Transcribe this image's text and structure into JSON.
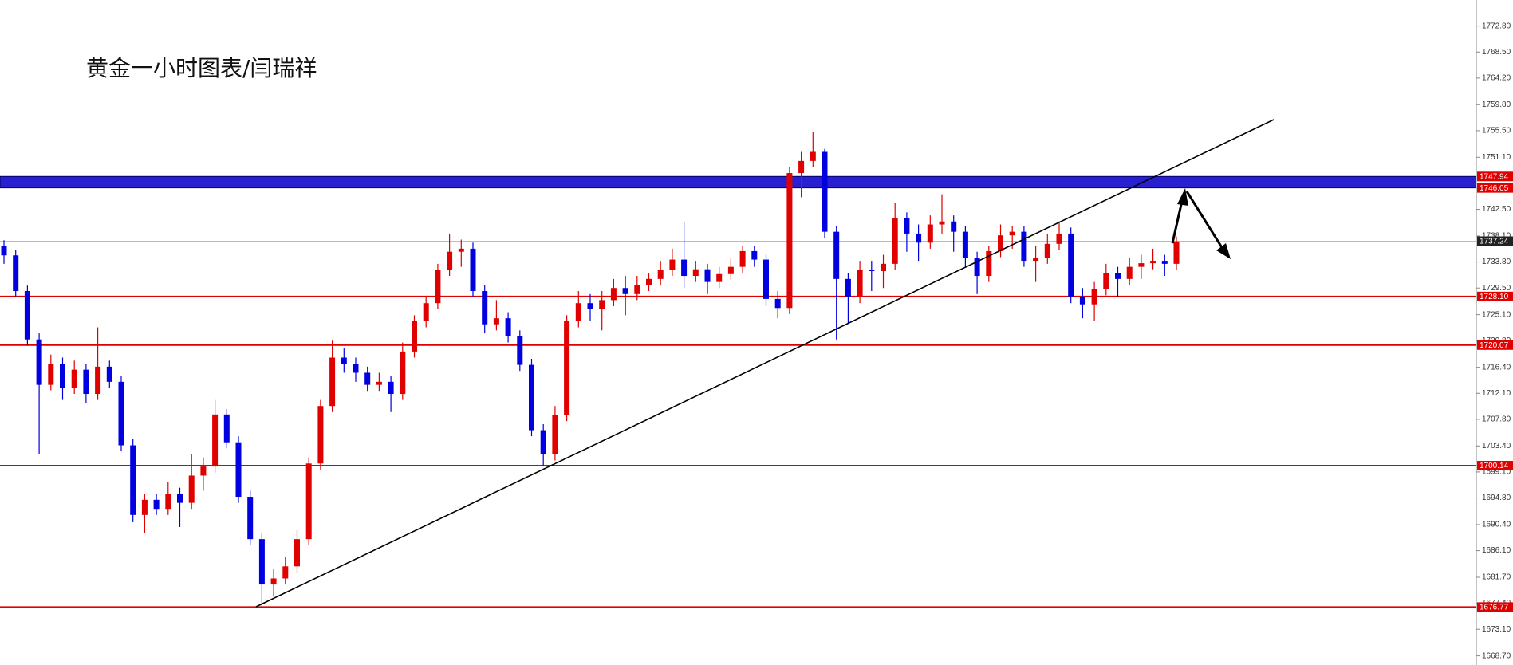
{
  "chart_data": {
    "type": "candlestick",
    "title": "黄金一小时图表/闫瑞祥",
    "up_color": "#e00000",
    "down_color": "#0000e0",
    "ylim": [
      1667.2,
      1777.1
    ],
    "yticks": [
      {
        "value": 1772.8,
        "label": "1772.80"
      },
      {
        "value": 1768.5,
        "label": "1768.50"
      },
      {
        "value": 1764.2,
        "label": "1764.20"
      },
      {
        "value": 1759.8,
        "label": "1759.80"
      },
      {
        "value": 1755.5,
        "label": "1755.50"
      },
      {
        "value": 1751.1,
        "label": "1751.10"
      },
      {
        "value": 1742.5,
        "label": "1742.50"
      },
      {
        "value": 1738.1,
        "label": "1738.10"
      },
      {
        "value": 1733.8,
        "label": "1733.80"
      },
      {
        "value": 1729.5,
        "label": "1729.50"
      },
      {
        "value": 1725.1,
        "label": "1725.10"
      },
      {
        "value": 1720.8,
        "label": "1720.80"
      },
      {
        "value": 1716.4,
        "label": "1716.40"
      },
      {
        "value": 1712.1,
        "label": "1712.10"
      },
      {
        "value": 1707.8,
        "label": "1707.80"
      },
      {
        "value": 1703.4,
        "label": "1703.40"
      },
      {
        "value": 1699.1,
        "label": "1699.10"
      },
      {
        "value": 1694.8,
        "label": "1694.80"
      },
      {
        "value": 1690.4,
        "label": "1690.40"
      },
      {
        "value": 1686.1,
        "label": "1686.10"
      },
      {
        "value": 1681.7,
        "label": "1681.70"
      },
      {
        "value": 1677.4,
        "label": "1677.40"
      },
      {
        "value": 1673.1,
        "label": "1673.10"
      },
      {
        "value": 1668.7,
        "label": "1668.70"
      }
    ],
    "levels": [
      {
        "value": 1728.1,
        "label": "1728.10"
      },
      {
        "value": 1720.07,
        "label": "1720.07"
      },
      {
        "value": 1700.14,
        "label": "1700.14"
      },
      {
        "value": 1676.77,
        "label": "1676.77"
      }
    ],
    "level_color": "#e00000",
    "band": {
      "color": "#2a1fd0",
      "label_color": "#e00000",
      "values": [
        {
          "value": 1746.05,
          "label": "1746.05"
        },
        {
          "value": 1747.94,
          "label": "1747.94"
        }
      ]
    },
    "last_price": {
      "value": 1737.24,
      "label": "1737.24",
      "color": "#bbbbbb",
      "label_color": "#222222"
    },
    "ohlc": [
      [
        1736.5,
        1737.4,
        1733.5,
        1734.9
      ],
      [
        1734.9,
        1735.8,
        1728,
        1729
      ],
      [
        1729,
        1729.9,
        1720,
        1721
      ],
      [
        1721,
        1722,
        1702,
        1713.5
      ],
      [
        1713.5,
        1718.5,
        1712.6,
        1717
      ],
      [
        1717,
        1718,
        1711,
        1713
      ],
      [
        1713,
        1717.5,
        1712,
        1716
      ],
      [
        1716,
        1717,
        1710.5,
        1712
      ],
      [
        1712,
        1723,
        1711,
        1716.5
      ],
      [
        1716.5,
        1717.5,
        1713,
        1714
      ],
      [
        1714,
        1715,
        1702.5,
        1703.5
      ],
      [
        1703.5,
        1704.5,
        1690.8,
        1692
      ],
      [
        1692,
        1695.5,
        1689,
        1694.5
      ],
      [
        1694.5,
        1695.5,
        1692,
        1693
      ],
      [
        1693,
        1697.5,
        1692,
        1695.5
      ],
      [
        1695.5,
        1696.5,
        1690,
        1694
      ],
      [
        1694,
        1702,
        1693,
        1698.5
      ],
      [
        1698.5,
        1701.5,
        1696,
        1700
      ],
      [
        1700,
        1711,
        1699,
        1708.6
      ],
      [
        1708.6,
        1709.5,
        1703,
        1704
      ],
      [
        1704,
        1705,
        1694,
        1695
      ],
      [
        1695,
        1696,
        1687,
        1688
      ],
      [
        1688,
        1689,
        1676.8,
        1680.5
      ],
      [
        1680.5,
        1683,
        1678.5,
        1681.5
      ],
      [
        1681.5,
        1685,
        1680.5,
        1683.5
      ],
      [
        1683.5,
        1689.5,
        1682.5,
        1688
      ],
      [
        1688,
        1701.5,
        1687,
        1700.5
      ],
      [
        1700.5,
        1711,
        1699.5,
        1710
      ],
      [
        1710,
        1720.8,
        1709,
        1718
      ],
      [
        1718,
        1719.5,
        1715.5,
        1717
      ],
      [
        1717,
        1718,
        1714,
        1715.5
      ],
      [
        1715.5,
        1716.5,
        1712.5,
        1713.5
      ],
      [
        1713.5,
        1715.5,
        1712.5,
        1714
      ],
      [
        1714,
        1715,
        1709,
        1712
      ],
      [
        1712,
        1720.5,
        1711,
        1719
      ],
      [
        1719,
        1725,
        1718,
        1724
      ],
      [
        1724,
        1728,
        1723,
        1727
      ],
      [
        1727,
        1733.5,
        1726,
        1732.5
      ],
      [
        1732.5,
        1738.5,
        1731.5,
        1735.5
      ],
      [
        1735.5,
        1737.5,
        1733,
        1736
      ],
      [
        1736,
        1737,
        1728,
        1729
      ],
      [
        1729,
        1730,
        1722,
        1723.5
      ],
      [
        1723.5,
        1727.5,
        1722.5,
        1724.5
      ],
      [
        1724.5,
        1725.5,
        1720.5,
        1721.5
      ],
      [
        1721.5,
        1722.5,
        1715.8,
        1716.8
      ],
      [
        1716.8,
        1717.8,
        1705,
        1706
      ],
      [
        1706,
        1707,
        1700.1,
        1702
      ],
      [
        1702,
        1710,
        1701,
        1708.5
      ],
      [
        1708.5,
        1725,
        1707.5,
        1724
      ],
      [
        1724,
        1729,
        1723,
        1727
      ],
      [
        1727,
        1728.5,
        1724,
        1726
      ],
      [
        1726,
        1729,
        1722.5,
        1727.5
      ],
      [
        1727.5,
        1731,
        1726.5,
        1729.5
      ],
      [
        1729.5,
        1731.5,
        1725,
        1728.5
      ],
      [
        1728.5,
        1731.5,
        1727.5,
        1730
      ],
      [
        1730,
        1732,
        1729,
        1731
      ],
      [
        1731,
        1734,
        1730,
        1732.5
      ],
      [
        1732.5,
        1736,
        1731.5,
        1734.2
      ],
      [
        1734.2,
        1740.5,
        1729.5,
        1731.5
      ],
      [
        1731.5,
        1734,
        1730.5,
        1732.6
      ],
      [
        1732.6,
        1733.5,
        1728.5,
        1730.5
      ],
      [
        1730.5,
        1733,
        1729.5,
        1731.8
      ],
      [
        1731.8,
        1734.5,
        1730.8,
        1733
      ],
      [
        1733,
        1736.5,
        1732,
        1735.6
      ],
      [
        1735.6,
        1736.5,
        1733,
        1734.2
      ],
      [
        1734.2,
        1735,
        1726.5,
        1727.7
      ],
      [
        1727.7,
        1729,
        1724.5,
        1726.2
      ],
      [
        1726.2,
        1749.5,
        1725.2,
        1748.5
      ],
      [
        1748.5,
        1752,
        1744.5,
        1750.5
      ],
      [
        1750.5,
        1755.3,
        1749.5,
        1752
      ],
      [
        1752,
        1752.5,
        1737.8,
        1738.8
      ],
      [
        1738.8,
        1739.8,
        1721,
        1731
      ],
      [
        1731,
        1732,
        1723.7,
        1728
      ],
      [
        1728,
        1734,
        1727,
        1732.5
      ],
      [
        1732.5,
        1734,
        1729,
        1732.3
      ],
      [
        1732.3,
        1735,
        1729.5,
        1733.5
      ],
      [
        1733.5,
        1743.5,
        1732.5,
        1741
      ],
      [
        1741,
        1742,
        1735.5,
        1738.5
      ],
      [
        1738.5,
        1740,
        1734,
        1737
      ],
      [
        1737,
        1741.5,
        1736,
        1740
      ],
      [
        1740,
        1745,
        1738.5,
        1740.5
      ],
      [
        1740.5,
        1741.5,
        1735.5,
        1738.8
      ],
      [
        1738.8,
        1739.8,
        1733,
        1734.5
      ],
      [
        1734.5,
        1735.5,
        1728.5,
        1731.5
      ],
      [
        1731.5,
        1736.5,
        1730.5,
        1735.6
      ],
      [
        1735.6,
        1740,
        1734.6,
        1738.2
      ],
      [
        1738.2,
        1739.8,
        1736,
        1738.8
      ],
      [
        1738.8,
        1739.8,
        1733,
        1734
      ],
      [
        1734,
        1736.5,
        1730.5,
        1734.5
      ],
      [
        1734.5,
        1738.5,
        1733.5,
        1736.8
      ],
      [
        1736.8,
        1740.5,
        1735.8,
        1738.5
      ],
      [
        1738.5,
        1739.5,
        1727,
        1728
      ],
      [
        1728,
        1729.5,
        1724.5,
        1726.8
      ],
      [
        1726.8,
        1730.5,
        1724,
        1729.3
      ],
      [
        1729.3,
        1733.5,
        1728.3,
        1732
      ],
      [
        1732,
        1733,
        1728,
        1731
      ],
      [
        1731,
        1734.5,
        1730,
        1733
      ],
      [
        1733,
        1735,
        1731,
        1733.6
      ],
      [
        1733.6,
        1736,
        1732.6,
        1734
      ],
      [
        1734,
        1735,
        1731.5,
        1733.5
      ],
      [
        1733.5,
        1738,
        1732.5,
        1737.2
      ]
    ]
  }
}
